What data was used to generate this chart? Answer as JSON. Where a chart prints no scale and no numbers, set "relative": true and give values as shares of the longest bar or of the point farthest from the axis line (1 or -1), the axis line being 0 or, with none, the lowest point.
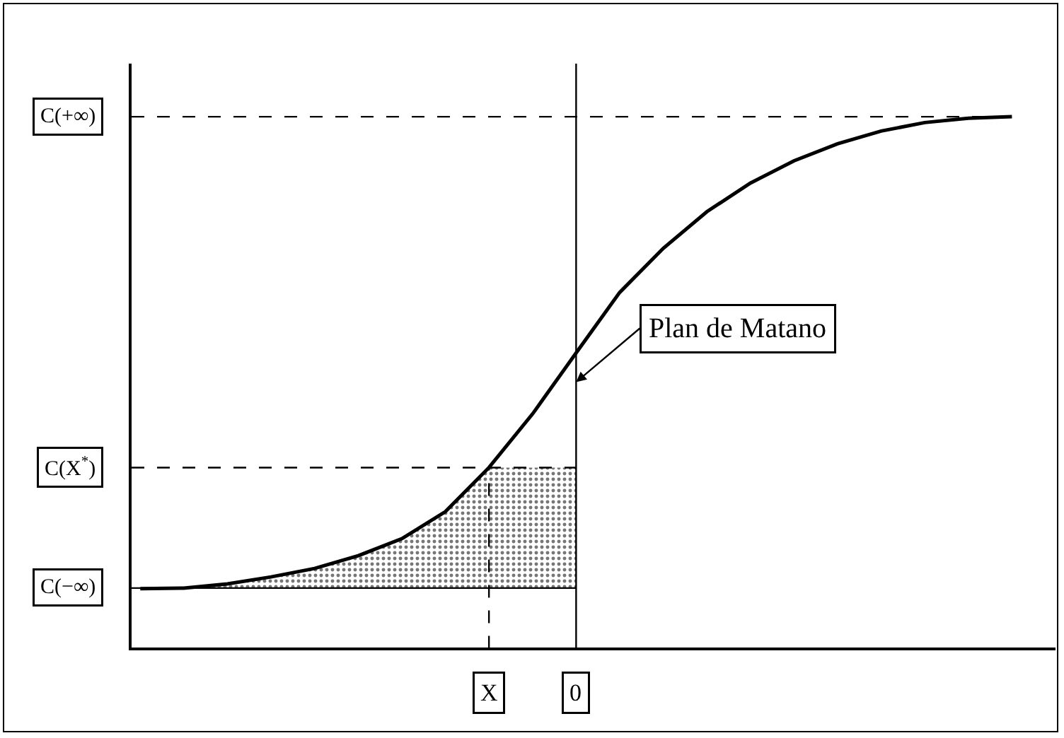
{
  "chart_data": {
    "type": "line",
    "relative": true,
    "line_style": "solid",
    "marker": "none",
    "categories": [
      null,
      null,
      null,
      null,
      null,
      null,
      null,
      null,
      "X",
      null,
      "0",
      null,
      null,
      null,
      null,
      null,
      null,
      null,
      null,
      null,
      null
    ],
    "series": [
      {
        "color": "#000000",
        "values": [
          0.111,
          0.112,
          0.12,
          0.133,
          0.149,
          0.173,
          0.205,
          0.256,
          0.339,
          0.44,
          0.555,
          0.669,
          0.752,
          0.821,
          0.875,
          0.917,
          0.949,
          0.973,
          0.989,
          0.997,
          1.0
        ],
        "lower": [
          0.111,
          0.112,
          0.112,
          0.112,
          0.112,
          0.112,
          0.112,
          0.112,
          0.112,
          0.112,
          0.112,
          null,
          null,
          null,
          null,
          null,
          null,
          null,
          null,
          null,
          null
        ],
        "upper": [
          0.111,
          0.112,
          0.12,
          0.133,
          0.149,
          0.173,
          0.205,
          0.256,
          0.339,
          0.339,
          0.339,
          null,
          null,
          null,
          null,
          null,
          null,
          null,
          null,
          null,
          null
        ]
      }
    ],
    "ref_lines": [
      {
        "axis": "y",
        "value": 1.0,
        "label": "C(+∞)",
        "line_style": "dashed",
        "color": "#000000"
      },
      {
        "axis": "y",
        "value": 0.339,
        "label": "C(X$^{*}$)",
        "line_style": "dashed",
        "color": "#000000"
      },
      {
        "axis": "y",
        "value": 0.112,
        "label": "C(−∞)",
        "line_style": "solid",
        "color": "#000000"
      },
      {
        "axis": "x",
        "value": "X",
        "line_style": "dashed",
        "color": "#000000"
      },
      {
        "axis": "x",
        "value": "0",
        "line_style": "solid",
        "color": "#000000"
      }
    ],
    "annotations": [
      {
        "text": "Plan de Matano",
        "x": "0",
        "y": 0.5
      }
    ]
  }
}
